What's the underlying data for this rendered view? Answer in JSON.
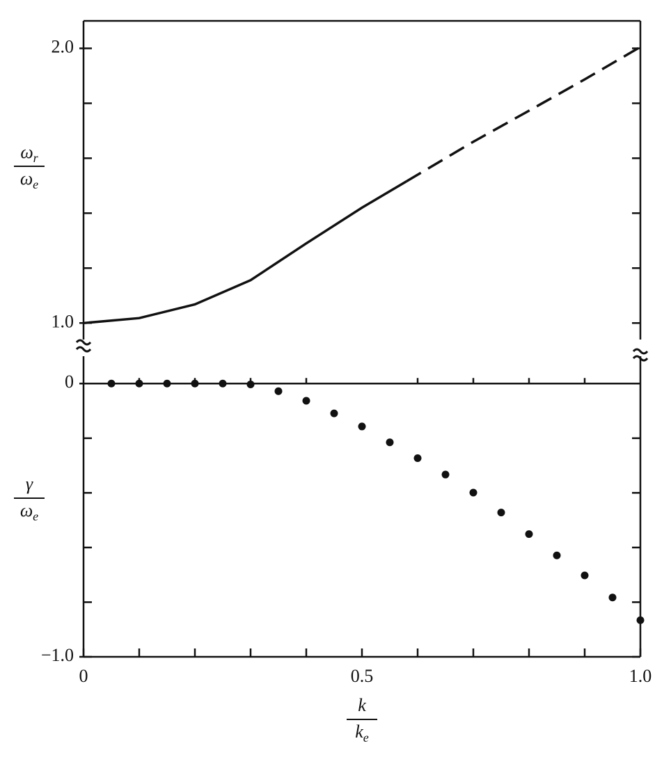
{
  "chart_data": [
    {
      "type": "line",
      "ylabel": {
        "numerator": {
          "text": "ω",
          "sub": "r"
        },
        "denominator": {
          "text": "ω",
          "sub": "e"
        }
      },
      "x": [
        0,
        0.1,
        0.2,
        0.3,
        0.4,
        0.5,
        0.58,
        0.6,
        0.7,
        0.8,
        0.9,
        1.0
      ],
      "series": [
        {
          "style": "solid",
          "color": "#111",
          "values": [
            1.0,
            1.018,
            1.068,
            1.156,
            1.29,
            1.42,
            1.516,
            null,
            null,
            null,
            null,
            null
          ]
        },
        {
          "style": "dashed",
          "color": "#111",
          "values": [
            null,
            null,
            null,
            null,
            null,
            null,
            1.516,
            1.54,
            1.66,
            1.773,
            1.887,
            2.005
          ]
        }
      ],
      "xlim": [
        0,
        1.0
      ],
      "ylim": [
        0.94,
        2.1
      ],
      "yticks": [
        {
          "value": 1.0,
          "label": "1.0"
        },
        {
          "value": 2.0,
          "label": "2.0"
        }
      ],
      "yminorticks": [
        1.2,
        1.4,
        1.6,
        1.8
      ]
    },
    {
      "type": "scatter",
      "ylabel": {
        "numerator": {
          "text": "γ"
        },
        "denominator": {
          "text": "ω",
          "sub": "e"
        }
      },
      "xlabel": {
        "numerator": {
          "text": "k"
        },
        "denominator": {
          "text": "k",
          "sub": "e"
        }
      },
      "x": [
        0.05,
        0.1,
        0.15,
        0.2,
        0.25,
        0.3,
        0.35,
        0.4,
        0.45,
        0.5,
        0.55,
        0.6,
        0.65,
        0.7,
        0.75,
        0.8,
        0.85,
        0.9,
        0.95,
        1.0
      ],
      "series": [
        {
          "color": "#111",
          "values": [
            0,
            0,
            0,
            0,
            0,
            -0.003,
            -0.028,
            -0.063,
            -0.109,
            -0.157,
            -0.215,
            -0.273,
            -0.333,
            -0.399,
            -0.472,
            -0.551,
            -0.629,
            -0.702,
            -0.783,
            -0.866
          ]
        }
      ],
      "xlim": [
        0,
        1.0
      ],
      "ylim": [
        -1.0,
        0.1
      ],
      "xticks": [
        0,
        0.5,
        {
          "value": 1.0,
          "label": "1.0"
        }
      ],
      "xminorticks": [
        0.1,
        0.2,
        0.3,
        0.4,
        0.6,
        0.7,
        0.8,
        0.9
      ],
      "yticks": [
        0,
        {
          "value": -1.0,
          "label": "−1.0"
        }
      ],
      "yminorticks": [
        -0.2,
        -0.4,
        -0.6,
        -0.8
      ],
      "zero_line": true
    }
  ]
}
